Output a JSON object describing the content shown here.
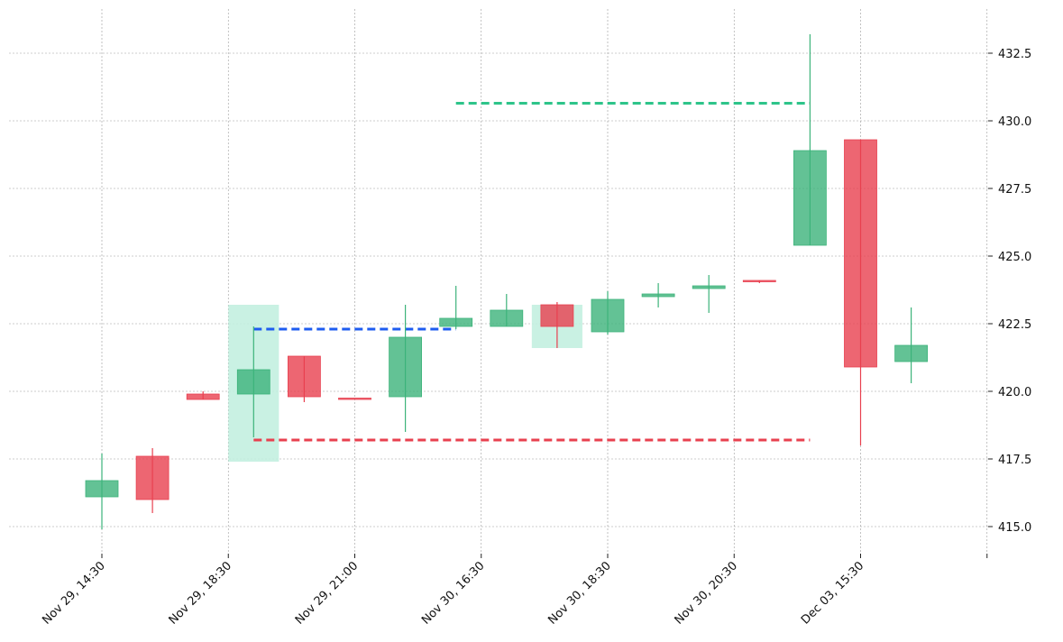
{
  "chart_data": {
    "type": "candlestick",
    "title": "",
    "xlabel": "",
    "ylabel": "",
    "ylim": [
      414,
      434
    ],
    "yticks": [
      415.0,
      417.5,
      420.0,
      422.5,
      425.0,
      427.5,
      430.0,
      432.5
    ],
    "ytick_labels": [
      "415.0",
      "417.5",
      "420.0",
      "422.5",
      "425.0",
      "427.5",
      "430.0",
      "432.5"
    ],
    "xtick_positions": [
      0,
      2.5,
      5,
      7.5,
      10,
      12.5,
      15,
      17.5
    ],
    "xtick_labels": [
      "Nov 29, 14:30",
      "Nov 29, 18:30",
      "Nov 29, 21:00",
      "Nov 30, 16:30",
      "Nov 30, 18:30",
      "Nov 30, 20:30",
      "Dec 03, 15:30",
      ""
    ],
    "grid": true,
    "colors": {
      "up": "#3cb37a",
      "down": "#e8404f",
      "highlight": "#c3efe0",
      "support": "#e8404f",
      "resistance": "#1e5cf0",
      "target": "#2ec48a"
    },
    "candles": [
      {
        "x": 0,
        "open": 416.1,
        "high": 417.7,
        "low": 414.9,
        "close": 416.7
      },
      {
        "x": 1,
        "open": 417.6,
        "high": 417.9,
        "low": 415.5,
        "close": 416.0
      },
      {
        "x": 2,
        "open": 419.9,
        "high": 420.0,
        "low": 419.7,
        "close": 419.7
      },
      {
        "x": 3,
        "open": 419.9,
        "high": 422.4,
        "low": 418.3,
        "close": 420.8
      },
      {
        "x": 4,
        "open": 421.3,
        "high": 421.3,
        "low": 419.6,
        "close": 419.8
      },
      {
        "x": 5,
        "open": 419.75,
        "high": 419.75,
        "low": 419.75,
        "close": 419.7
      },
      {
        "x": 6,
        "open": 419.8,
        "high": 423.2,
        "low": 418.5,
        "close": 422.0
      },
      {
        "x": 7,
        "open": 422.4,
        "high": 423.9,
        "low": 422.3,
        "close": 422.7
      },
      {
        "x": 8,
        "open": 422.4,
        "high": 423.6,
        "low": 422.4,
        "close": 423.0
      },
      {
        "x": 9,
        "open": 423.2,
        "high": 423.3,
        "low": 421.6,
        "close": 422.4
      },
      {
        "x": 10,
        "open": 422.2,
        "high": 423.7,
        "low": 422.1,
        "close": 423.4
      },
      {
        "x": 11,
        "open": 423.5,
        "high": 424.0,
        "low": 423.1,
        "close": 423.6
      },
      {
        "x": 12,
        "open": 423.8,
        "high": 424.3,
        "low": 422.9,
        "close": 423.9
      },
      {
        "x": 13,
        "open": 424.1,
        "high": 424.1,
        "low": 424.0,
        "close": 424.05
      },
      {
        "x": 14,
        "open": 425.4,
        "high": 433.2,
        "low": 425.4,
        "close": 428.9
      },
      {
        "x": 15,
        "open": 429.3,
        "high": 429.3,
        "low": 418.0,
        "close": 420.9
      },
      {
        "x": 16,
        "open": 421.1,
        "high": 423.1,
        "low": 420.3,
        "close": 421.7
      }
    ],
    "highlights": [
      {
        "x0": 2.5,
        "x1": 3.5,
        "ybottom": 417.4,
        "ytop": 423.2
      },
      {
        "x0": 8.5,
        "x1": 9.5,
        "ybottom": 421.6,
        "ytop": 423.2
      }
    ],
    "lines": [
      {
        "name": "resistance",
        "x0": 3,
        "x1": 7,
        "y": 422.3
      },
      {
        "name": "support",
        "x0": 3,
        "x1": 14,
        "y": 418.2
      },
      {
        "name": "target",
        "x0": 7,
        "x1": 14,
        "y": 430.65
      }
    ]
  }
}
